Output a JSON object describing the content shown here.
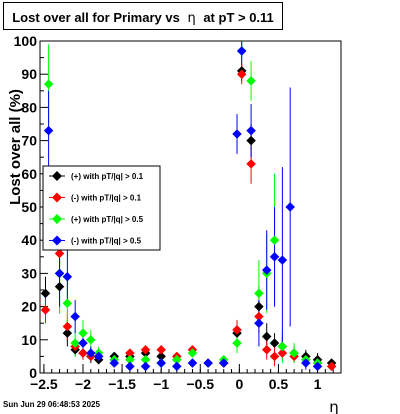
{
  "title": {
    "prefix": "Lost over all for Primary vs",
    "eta_symbol": "η",
    "suffix": "at pT > 0.11"
  },
  "footer": {
    "date": "Sun Jun 29 06:48:53 2025"
  },
  "chart_data": {
    "type": "scatter",
    "title": "Lost over all for Primary vs η at pT > 0.11",
    "xlabel": "η",
    "ylabel": "Lost over all (%)",
    "xlim": [
      -2.55,
      1.3
    ],
    "ylim": [
      0,
      100
    ],
    "x_ticks": [
      -2.5,
      -2,
      -1.5,
      -1,
      -0.5,
      0,
      0.5,
      1
    ],
    "x_tick_labels": [
      "−2.5",
      "−2",
      "−1.5",
      "−1",
      "−0.5",
      "0",
      "0.5",
      "1"
    ],
    "y_ticks": [
      0,
      10,
      20,
      30,
      40,
      50,
      60,
      70,
      80,
      90,
      100
    ],
    "y_tick_labels": [
      "0",
      "10",
      "20",
      "30",
      "40",
      "50",
      "60",
      "70",
      "80",
      "90",
      "100"
    ],
    "grid": false,
    "legend_position": "middle-left",
    "colors": {
      "plus_01": "#000000",
      "minus_01": "#ff0000",
      "plus_05": "#00ff00",
      "minus_05": "#0000ff"
    },
    "series": [
      {
        "name": "(+) with pT/|q| > 0.1",
        "color": "#000000",
        "points": [
          {
            "x": -2.48,
            "y": 24,
            "err": 5
          },
          {
            "x": -2.3,
            "y": 26,
            "err": 8
          },
          {
            "x": -2.2,
            "y": 12,
            "err": 4
          },
          {
            "x": -2.1,
            "y": 7,
            "err": 2
          },
          {
            "x": -2.0,
            "y": 6,
            "err": 2
          },
          {
            "x": -1.9,
            "y": 5,
            "err": 2
          },
          {
            "x": -1.8,
            "y": 4,
            "err": 1
          },
          {
            "x": -1.6,
            "y": 5,
            "err": 1
          },
          {
            "x": -1.4,
            "y": 5,
            "err": 1
          },
          {
            "x": -1.2,
            "y": 6,
            "err": 1
          },
          {
            "x": -1.0,
            "y": 5,
            "err": 1
          },
          {
            "x": -0.8,
            "y": 4,
            "err": 1
          },
          {
            "x": -0.6,
            "y": 3,
            "err": 1
          },
          {
            "x": -0.4,
            "y": 3,
            "err": 1
          },
          {
            "x": -0.2,
            "y": 3,
            "err": 1
          },
          {
            "x": -0.03,
            "y": 12,
            "err": 3
          },
          {
            "x": 0.03,
            "y": 91,
            "err": 3
          },
          {
            "x": 0.15,
            "y": 70,
            "err": 5
          },
          {
            "x": 0.25,
            "y": 20,
            "err": 6
          },
          {
            "x": 0.35,
            "y": 11,
            "err": 4
          },
          {
            "x": 0.45,
            "y": 9,
            "err": 3
          },
          {
            "x": 0.55,
            "y": 8,
            "err": 3
          },
          {
            "x": 0.7,
            "y": 6,
            "err": 2
          },
          {
            "x": 0.85,
            "y": 5,
            "err": 2
          },
          {
            "x": 1.0,
            "y": 4,
            "err": 2
          },
          {
            "x": 1.18,
            "y": 3,
            "err": 1
          }
        ]
      },
      {
        "name": "(-) with pT/|q| > 0.1",
        "color": "#ff0000",
        "points": [
          {
            "x": -2.48,
            "y": 19,
            "err": 4
          },
          {
            "x": -2.3,
            "y": 36,
            "err": 10
          },
          {
            "x": -2.2,
            "y": 14,
            "err": 4
          },
          {
            "x": -2.1,
            "y": 8,
            "err": 2
          },
          {
            "x": -2.0,
            "y": 6,
            "err": 2
          },
          {
            "x": -1.9,
            "y": 5,
            "err": 1
          },
          {
            "x": -1.8,
            "y": 5,
            "err": 1
          },
          {
            "x": -1.6,
            "y": 4,
            "err": 1
          },
          {
            "x": -1.4,
            "y": 6,
            "err": 1
          },
          {
            "x": -1.2,
            "y": 7,
            "err": 1
          },
          {
            "x": -1.0,
            "y": 7,
            "err": 1
          },
          {
            "x": -0.8,
            "y": 5,
            "err": 1
          },
          {
            "x": -0.6,
            "y": 7,
            "err": 1
          },
          {
            "x": -0.4,
            "y": 3,
            "err": 1
          },
          {
            "x": -0.2,
            "y": 3,
            "err": 1
          },
          {
            "x": -0.03,
            "y": 13,
            "err": 3
          },
          {
            "x": 0.03,
            "y": 90,
            "err": 3
          },
          {
            "x": 0.15,
            "y": 63,
            "err": 6
          },
          {
            "x": 0.25,
            "y": 17,
            "err": 5
          },
          {
            "x": 0.35,
            "y": 7,
            "err": 3
          },
          {
            "x": 0.45,
            "y": 5,
            "err": 3
          },
          {
            "x": 0.55,
            "y": 6,
            "err": 2
          },
          {
            "x": 0.7,
            "y": 5,
            "err": 2
          },
          {
            "x": 0.85,
            "y": 4,
            "err": 2
          },
          {
            "x": 1.0,
            "y": 3,
            "err": 1
          },
          {
            "x": 1.18,
            "y": 2,
            "err": 1
          }
        ]
      },
      {
        "name": "(+) with pT/|q| > 0.5",
        "color": "#00ff00",
        "points": [
          {
            "x": -2.44,
            "y": 87,
            "err": 12
          },
          {
            "x": -2.3,
            "y": 30,
            "err": 12
          },
          {
            "x": -2.2,
            "y": 21,
            "err": 8
          },
          {
            "x": -2.1,
            "y": 9,
            "err": 4
          },
          {
            "x": -2.0,
            "y": 12,
            "err": 4
          },
          {
            "x": -1.9,
            "y": 10,
            "err": 3
          },
          {
            "x": -1.8,
            "y": 6,
            "err": 2
          },
          {
            "x": -1.6,
            "y": 4,
            "err": 1
          },
          {
            "x": -1.4,
            "y": 4,
            "err": 1
          },
          {
            "x": -1.2,
            "y": 4,
            "err": 1
          },
          {
            "x": -1.0,
            "y": 3,
            "err": 1
          },
          {
            "x": -0.8,
            "y": 4,
            "err": 1
          },
          {
            "x": -0.6,
            "y": 6,
            "err": 1
          },
          {
            "x": -0.4,
            "y": 3,
            "err": 1
          },
          {
            "x": -0.2,
            "y": 4,
            "err": 1
          },
          {
            "x": -0.03,
            "y": 9,
            "err": 3
          },
          {
            "x": 0.03,
            "y": 97,
            "err": 3
          },
          {
            "x": 0.15,
            "y": 88,
            "err": 6
          },
          {
            "x": 0.25,
            "y": 24,
            "err": 10
          },
          {
            "x": 0.35,
            "y": 30,
            "err": 12
          },
          {
            "x": 0.45,
            "y": 40,
            "err": 20
          },
          {
            "x": 0.55,
            "y": 8,
            "err": 5
          },
          {
            "x": 0.7,
            "y": 6,
            "err": 3
          },
          {
            "x": 0.85,
            "y": 4,
            "err": 2
          },
          {
            "x": 1.0,
            "y": 3,
            "err": 1
          }
        ]
      },
      {
        "name": "(-) with pT/|q| > 0.5",
        "color": "#0000ff",
        "points": [
          {
            "x": -2.44,
            "y": 73,
            "err": 12
          },
          {
            "x": -2.3,
            "y": 30,
            "err": 10
          },
          {
            "x": -2.2,
            "y": 29,
            "err": 9
          },
          {
            "x": -2.1,
            "y": 17,
            "err": 5
          },
          {
            "x": -2.0,
            "y": 9,
            "err": 3
          },
          {
            "x": -1.9,
            "y": 6,
            "err": 2
          },
          {
            "x": -1.8,
            "y": 5,
            "err": 1
          },
          {
            "x": -1.6,
            "y": 3,
            "err": 1
          },
          {
            "x": -1.4,
            "y": 2,
            "err": 1
          },
          {
            "x": -1.2,
            "y": 2,
            "err": 1
          },
          {
            "x": -1.0,
            "y": 3,
            "err": 1
          },
          {
            "x": -0.8,
            "y": 2,
            "err": 1
          },
          {
            "x": -0.6,
            "y": 3,
            "err": 1
          },
          {
            "x": -0.4,
            "y": 3,
            "err": 1
          },
          {
            "x": -0.2,
            "y": 3,
            "err": 1
          },
          {
            "x": -0.03,
            "y": 72,
            "err": 6
          },
          {
            "x": 0.03,
            "y": 97,
            "err": 3
          },
          {
            "x": 0.15,
            "y": 73,
            "err": 8
          },
          {
            "x": 0.25,
            "y": 15,
            "err": 7
          },
          {
            "x": 0.35,
            "y": 31,
            "err": 12
          },
          {
            "x": 0.45,
            "y": 35,
            "err": 15
          },
          {
            "x": 0.55,
            "y": 34,
            "err": 28
          },
          {
            "x": 0.65,
            "y": 50,
            "err": 36
          },
          {
            "x": 0.85,
            "y": 3,
            "err": 2
          },
          {
            "x": 1.0,
            "y": 2,
            "err": 1
          }
        ]
      }
    ]
  }
}
